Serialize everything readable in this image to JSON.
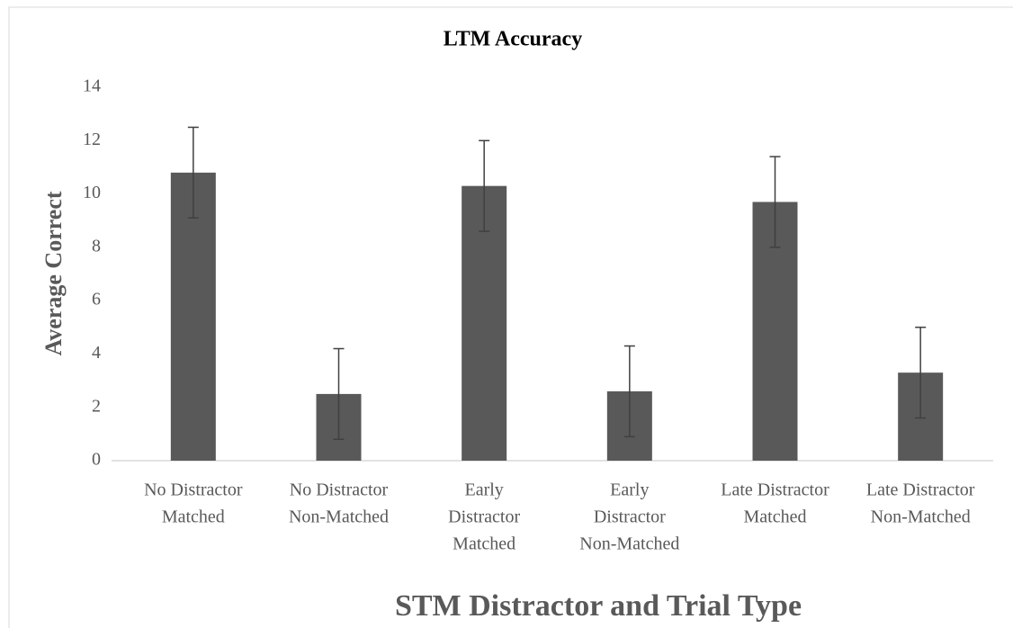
{
  "chart_data": {
    "type": "bar",
    "title": "LTM Accuracy",
    "x_label": "STM Distractor and Trial Type",
    "y_label": "Average Correct",
    "categories": [
      [
        "No Distractor",
        "Matched"
      ],
      [
        "No Distractor",
        "Non-Matched"
      ],
      [
        "Early",
        "Distractor",
        "Matched"
      ],
      [
        "Early",
        "Distractor",
        "Non-Matched"
      ],
      [
        "Late Distractor",
        "Matched"
      ],
      [
        "Late Distractor",
        "Non-Matched"
      ]
    ],
    "values": [
      10.8,
      2.5,
      10.3,
      2.6,
      9.7,
      3.3
    ],
    "errors": [
      1.7,
      1.7,
      1.7,
      1.7,
      1.7,
      1.7
    ],
    "color": "#595959",
    "error_color": "#404040",
    "ylim": [
      0,
      14
    ],
    "yticks": [
      0,
      2,
      4,
      6,
      8,
      10,
      12,
      14
    ],
    "grid": false
  }
}
